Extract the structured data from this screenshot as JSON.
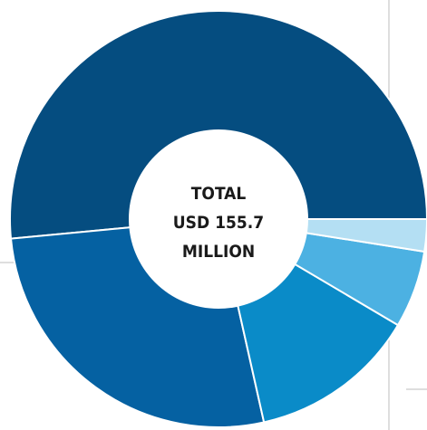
{
  "chart_data": {
    "type": "donut",
    "center_label": [
      "TOTAL",
      "USD 155.7",
      "MILLION"
    ],
    "total": 155.7,
    "unit": "USD million",
    "segments": [
      {
        "value": 51.5,
        "color": "#054d80"
      },
      {
        "value": 27.0,
        "color": "#0561a2"
      },
      {
        "value": 13.0,
        "color": "#0a8bc8"
      },
      {
        "value": 6.0,
        "color": "#4cb1e2"
      },
      {
        "value": 2.5,
        "color": "#b4dff3"
      }
    ]
  }
}
